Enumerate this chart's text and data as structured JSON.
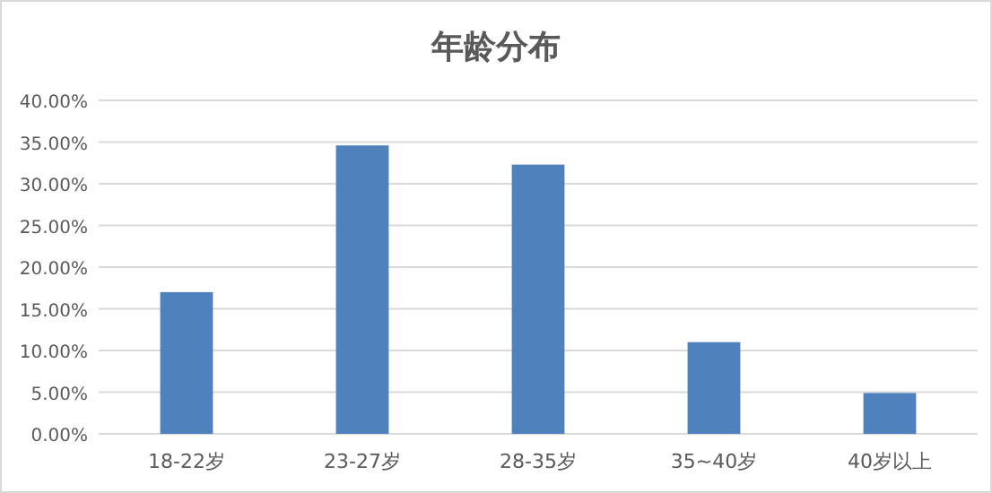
{
  "chart_data": {
    "type": "bar",
    "title": "年龄分布",
    "categories": [
      "18-22岁",
      "23-27岁",
      "28-35岁",
      "35~40岁",
      "40岁以上"
    ],
    "values": [
      17.0,
      34.6,
      32.3,
      11.0,
      4.9
    ],
    "color": "#4f81bd",
    "ylim": [
      0,
      40
    ],
    "yticks": [
      {
        "value": 0,
        "label": "0.00%"
      },
      {
        "value": 5,
        "label": "5.00%"
      },
      {
        "value": 10,
        "label": "10.00%"
      },
      {
        "value": 15,
        "label": "15.00%"
      },
      {
        "value": 20,
        "label": "20.00%"
      },
      {
        "value": 25,
        "label": "25.00%"
      },
      {
        "value": 30,
        "label": "30.00%"
      },
      {
        "value": 35,
        "label": "35.00%"
      },
      {
        "value": 40,
        "label": "40.00%"
      }
    ],
    "grid": "y"
  }
}
